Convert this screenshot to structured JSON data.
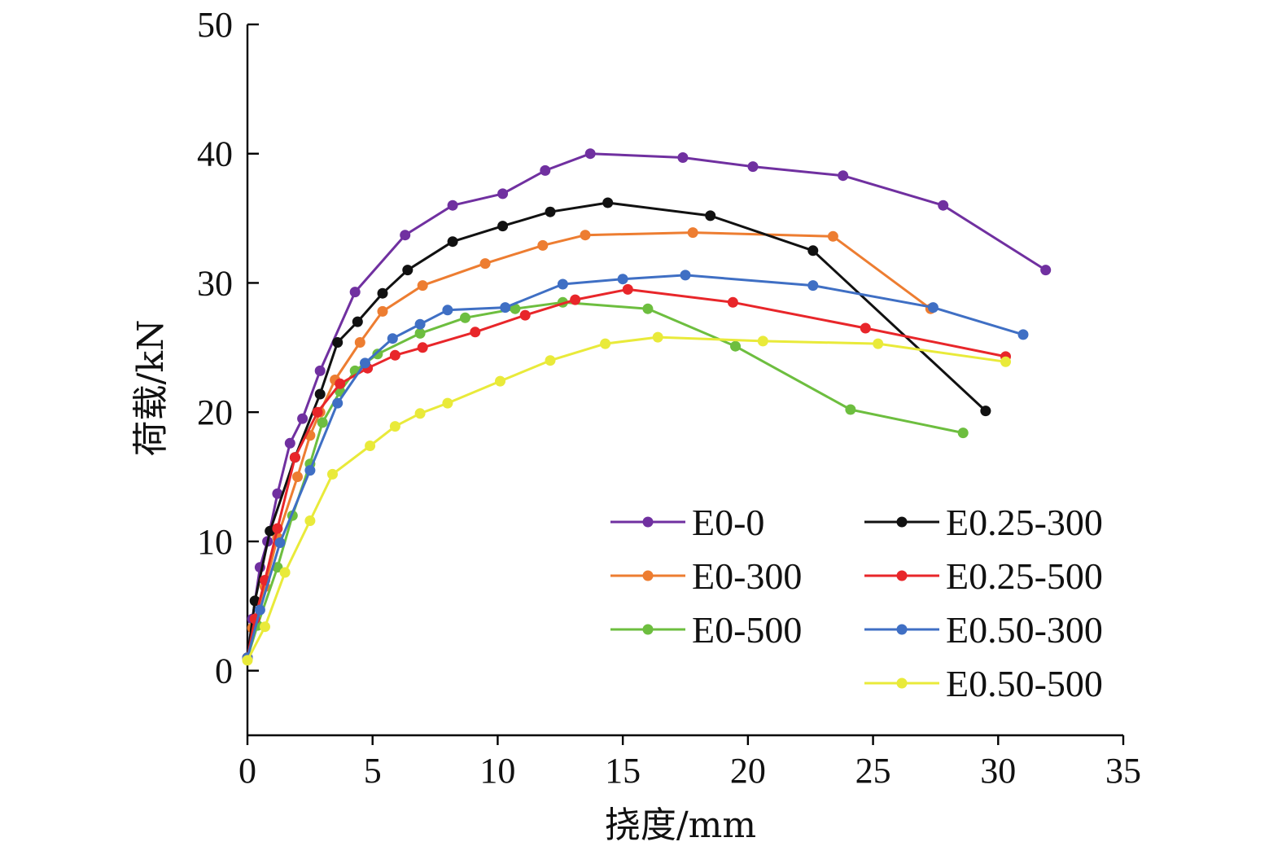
{
  "chart_data": {
    "type": "line",
    "title": "",
    "xlabel": "挠度/mm",
    "ylabel": "荷载/kN",
    "xlim": [
      0,
      35
    ],
    "ylim": [
      -5,
      50
    ],
    "xticks": [
      0,
      5,
      10,
      15,
      20,
      25,
      30,
      35
    ],
    "yticks": [
      0,
      10,
      20,
      30,
      40,
      50
    ],
    "grid": false,
    "legend_position": "bottom-right, two columns",
    "series": [
      {
        "name": "E0-0",
        "color": "#7030A0",
        "points": [
          [
            0,
            1.0
          ],
          [
            0.2,
            4.0
          ],
          [
            0.5,
            8.0
          ],
          [
            0.8,
            10.0
          ],
          [
            1.2,
            13.7
          ],
          [
            1.7,
            17.6
          ],
          [
            2.2,
            19.5
          ],
          [
            2.9,
            23.2
          ],
          [
            4.3,
            29.3
          ],
          [
            6.3,
            33.7
          ],
          [
            8.2,
            36.0
          ],
          [
            10.2,
            36.9
          ],
          [
            11.9,
            38.7
          ],
          [
            13.7,
            40.0
          ],
          [
            17.4,
            39.7
          ],
          [
            20.2,
            39.0
          ],
          [
            23.8,
            38.3
          ],
          [
            27.8,
            36.0
          ],
          [
            31.9,
            31.0
          ]
        ]
      },
      {
        "name": "E0-300",
        "color": "#ED7D31",
        "points": [
          [
            0,
            1.0
          ],
          [
            0.2,
            3.3
          ],
          [
            0.7,
            6.5
          ],
          [
            1.2,
            10.3
          ],
          [
            2.0,
            15.0
          ],
          [
            2.5,
            18.2
          ],
          [
            2.9,
            20.0
          ],
          [
            3.5,
            22.5
          ],
          [
            4.5,
            25.4
          ],
          [
            5.4,
            27.8
          ],
          [
            7.0,
            29.8
          ],
          [
            9.5,
            31.5
          ],
          [
            11.8,
            32.9
          ],
          [
            13.5,
            33.7
          ],
          [
            17.8,
            33.9
          ],
          [
            23.4,
            33.6
          ],
          [
            27.3,
            28.0
          ]
        ]
      },
      {
        "name": "E0-500",
        "color": "#6DBE3F",
        "points": [
          [
            0,
            1.0
          ],
          [
            0.4,
            3.5
          ],
          [
            1.2,
            8.0
          ],
          [
            1.8,
            12.0
          ],
          [
            2.5,
            16.0
          ],
          [
            3.0,
            19.2
          ],
          [
            3.7,
            21.6
          ],
          [
            4.3,
            23.2
          ],
          [
            5.2,
            24.5
          ],
          [
            6.9,
            26.1
          ],
          [
            8.7,
            27.3
          ],
          [
            10.7,
            28.0
          ],
          [
            12.6,
            28.5
          ],
          [
            16.0,
            28.0
          ],
          [
            19.5,
            25.1
          ],
          [
            24.1,
            20.2
          ],
          [
            28.6,
            18.4
          ]
        ]
      },
      {
        "name": "E0.25-300",
        "color": "#111111",
        "points": [
          [
            0,
            1.0
          ],
          [
            0.3,
            5.4
          ],
          [
            0.9,
            10.8
          ],
          [
            1.9,
            16.5
          ],
          [
            2.9,
            21.4
          ],
          [
            3.6,
            25.4
          ],
          [
            4.4,
            27.0
          ],
          [
            5.4,
            29.2
          ],
          [
            6.4,
            31.0
          ],
          [
            8.2,
            33.2
          ],
          [
            10.2,
            34.4
          ],
          [
            12.1,
            35.5
          ],
          [
            14.4,
            36.2
          ],
          [
            18.5,
            35.2
          ],
          [
            22.6,
            32.5
          ],
          [
            29.5,
            20.1
          ]
        ]
      },
      {
        "name": "E0.25-500",
        "color": "#E8262A",
        "points": [
          [
            0,
            1.0
          ],
          [
            0.3,
            4.0
          ],
          [
            0.7,
            7.0
          ],
          [
            1.2,
            11.0
          ],
          [
            1.9,
            16.5
          ],
          [
            2.8,
            20.0
          ],
          [
            3.7,
            22.2
          ],
          [
            4.8,
            23.4
          ],
          [
            5.9,
            24.4
          ],
          [
            7.0,
            25.0
          ],
          [
            9.1,
            26.2
          ],
          [
            11.1,
            27.5
          ],
          [
            13.1,
            28.7
          ],
          [
            15.2,
            29.5
          ],
          [
            19.4,
            28.5
          ],
          [
            24.7,
            26.5
          ],
          [
            30.3,
            24.3
          ]
        ]
      },
      {
        "name": "E0.50-300",
        "color": "#3F6FC4",
        "points": [
          [
            0,
            1.0
          ],
          [
            0.5,
            4.7
          ],
          [
            1.3,
            9.9
          ],
          [
            2.5,
            15.5
          ],
          [
            3.6,
            20.7
          ],
          [
            4.7,
            23.8
          ],
          [
            5.8,
            25.7
          ],
          [
            6.9,
            26.8
          ],
          [
            8.0,
            27.9
          ],
          [
            10.3,
            28.1
          ],
          [
            12.6,
            29.9
          ],
          [
            15.0,
            30.3
          ],
          [
            17.5,
            30.6
          ],
          [
            22.6,
            29.8
          ],
          [
            27.4,
            28.1
          ],
          [
            31.0,
            26.0
          ]
        ]
      },
      {
        "name": "E0.50-500",
        "color": "#E9EA3A",
        "points": [
          [
            0,
            0.8
          ],
          [
            0.7,
            3.4
          ],
          [
            1.5,
            7.6
          ],
          [
            2.5,
            11.6
          ],
          [
            3.4,
            15.2
          ],
          [
            4.9,
            17.4
          ],
          [
            5.9,
            18.9
          ],
          [
            6.9,
            19.9
          ],
          [
            8.0,
            20.7
          ],
          [
            10.1,
            22.4
          ],
          [
            12.1,
            24.0
          ],
          [
            14.3,
            25.3
          ],
          [
            16.4,
            25.8
          ],
          [
            20.6,
            25.5
          ],
          [
            25.2,
            25.3
          ],
          [
            30.3,
            23.9
          ]
        ]
      }
    ]
  }
}
